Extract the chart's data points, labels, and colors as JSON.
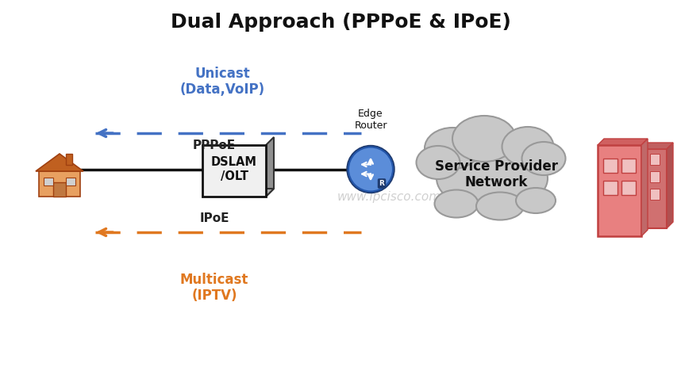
{
  "title": "Dual Approach (PPPoE & IPoE)",
  "title_fontsize": 18,
  "background_color": "#ffffff",
  "border_color": "#333333",
  "unicast_label": "Unicast\n(Data,VoIP)",
  "unicast_color": "#4472C4",
  "pppoe_label": "PPPoE",
  "pppoe_color": "#333333",
  "ipoe_label": "IPoE",
  "ipoe_color": "#333333",
  "multicast_label": "Multicast\n(IPTV)",
  "multicast_color": "#E07820",
  "dslam_label": "DSLAM\n/OLT",
  "edge_router_label": "Edge\nRouter",
  "sp_network_label": "Service Provider\nNetwork",
  "watermark": "www.ipcisco.com",
  "arrow_blue": "#4472C4",
  "arrow_orange": "#E07820",
  "line_color": "#111111",
  "cloud_color": "#C8C8C8",
  "cloud_edge": "#999999",
  "router_blue": "#4472C4",
  "building_color": "#E88080",
  "building_edge": "#C04040",
  "building_win": "#F0C0C0",
  "house_body": "#E8A060",
  "house_roof": "#C06020",
  "house_edge": "#A04010"
}
